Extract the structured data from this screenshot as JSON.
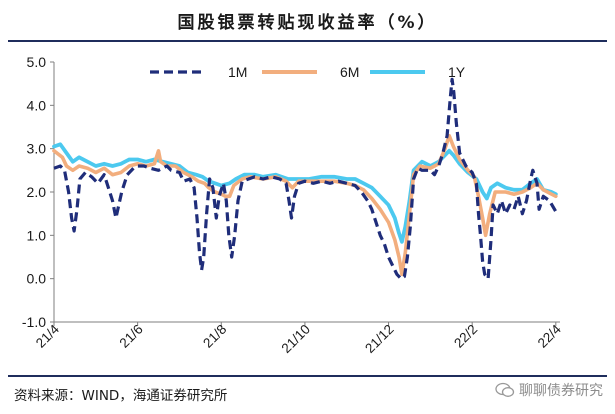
{
  "source": "资料来源：WIND，海通证券研究所",
  "watermark": "聊聊债券研究",
  "chart_data": {
    "type": "line",
    "title": "国股银票转贴现收益率（%）",
    "xlabel": "",
    "ylabel": "",
    "ylim": [
      -1.0,
      5.0
    ],
    "yticks": [
      "-1.0",
      "0.0",
      "1.0",
      "2.0",
      "3.0",
      "4.0",
      "5.0"
    ],
    "xlim": [
      0,
      12.1
    ],
    "xticks": [
      {
        "label": "21/4",
        "x": 0
      },
      {
        "label": "21/6",
        "x": 2
      },
      {
        "label": "21/8",
        "x": 4
      },
      {
        "label": "21/10",
        "x": 6
      },
      {
        "label": "21/12",
        "x": 8
      },
      {
        "label": "22/2",
        "x": 10
      },
      {
        "label": "22/4",
        "x": 12
      }
    ],
    "legend_position": "top",
    "grid": false,
    "series": [
      {
        "name": "1M",
        "color": "#1f2d7a",
        "style": "dashed",
        "points": [
          [
            0.0,
            2.55
          ],
          [
            0.15,
            2.6
          ],
          [
            0.25,
            2.5
          ],
          [
            0.35,
            2.0
          ],
          [
            0.42,
            1.4
          ],
          [
            0.48,
            1.1
          ],
          [
            0.55,
            1.6
          ],
          [
            0.62,
            2.3
          ],
          [
            0.75,
            2.45
          ],
          [
            0.9,
            2.35
          ],
          [
            1.05,
            2.2
          ],
          [
            1.2,
            2.4
          ],
          [
            1.3,
            2.1
          ],
          [
            1.4,
            1.8
          ],
          [
            1.48,
            1.4
          ],
          [
            1.55,
            1.7
          ],
          [
            1.62,
            2.0
          ],
          [
            1.75,
            2.4
          ],
          [
            1.9,
            2.55
          ],
          [
            2.0,
            2.6
          ],
          [
            2.15,
            2.6
          ],
          [
            2.3,
            2.55
          ],
          [
            2.5,
            2.5
          ],
          [
            2.7,
            2.6
          ],
          [
            2.8,
            2.5
          ],
          [
            3.0,
            2.45
          ],
          [
            3.1,
            2.25
          ],
          [
            3.25,
            2.3
          ],
          [
            3.35,
            2.1
          ],
          [
            3.42,
            1.4
          ],
          [
            3.48,
            0.6
          ],
          [
            3.53,
            0.2
          ],
          [
            3.58,
            0.5
          ],
          [
            3.65,
            1.5
          ],
          [
            3.72,
            2.3
          ],
          [
            3.8,
            2.1
          ],
          [
            3.88,
            1.4
          ],
          [
            3.95,
            1.9
          ],
          [
            4.05,
            2.2
          ],
          [
            4.12,
            1.8
          ],
          [
            4.18,
            1.0
          ],
          [
            4.25,
            0.5
          ],
          [
            4.32,
            1.0
          ],
          [
            4.4,
            1.8
          ],
          [
            4.5,
            2.25
          ],
          [
            4.65,
            2.3
          ],
          [
            4.8,
            2.35
          ],
          [
            5.0,
            2.3
          ],
          [
            5.2,
            2.35
          ],
          [
            5.4,
            2.3
          ],
          [
            5.55,
            2.2
          ],
          [
            5.62,
            1.8
          ],
          [
            5.68,
            1.4
          ],
          [
            5.75,
            1.9
          ],
          [
            5.85,
            2.2
          ],
          [
            6.0,
            2.25
          ],
          [
            6.2,
            2.2
          ],
          [
            6.4,
            2.25
          ],
          [
            6.6,
            2.2
          ],
          [
            6.8,
            2.25
          ],
          [
            7.0,
            2.2
          ],
          [
            7.2,
            2.15
          ],
          [
            7.35,
            2.0
          ],
          [
            7.5,
            1.8
          ],
          [
            7.6,
            1.6
          ],
          [
            7.7,
            1.3
          ],
          [
            7.8,
            1.0
          ],
          [
            7.9,
            0.8
          ],
          [
            8.0,
            0.5
          ],
          [
            8.1,
            0.3
          ],
          [
            8.2,
            0.1
          ],
          [
            8.3,
            0.0
          ],
          [
            8.38,
            0.05
          ],
          [
            8.45,
            0.5
          ],
          [
            8.52,
            1.2
          ],
          [
            8.6,
            2.3
          ],
          [
            8.7,
            2.55
          ],
          [
            8.8,
            2.5
          ],
          [
            9.0,
            2.5
          ],
          [
            9.1,
            2.4
          ],
          [
            9.2,
            2.6
          ],
          [
            9.3,
            2.9
          ],
          [
            9.4,
            3.3
          ],
          [
            9.48,
            4.2
          ],
          [
            9.52,
            4.6
          ],
          [
            9.56,
            4.3
          ],
          [
            9.62,
            3.6
          ],
          [
            9.7,
            2.9
          ],
          [
            9.85,
            2.6
          ],
          [
            10.0,
            2.45
          ],
          [
            10.1,
            2.2
          ],
          [
            10.15,
            1.5
          ],
          [
            10.2,
            1.0
          ],
          [
            10.25,
            0.4
          ],
          [
            10.3,
            0.1
          ],
          [
            10.38,
            0.0
          ],
          [
            10.45,
            0.9
          ],
          [
            10.5,
            1.7
          ],
          [
            10.6,
            1.5
          ],
          [
            10.7,
            1.8
          ],
          [
            10.8,
            1.5
          ],
          [
            10.9,
            1.7
          ],
          [
            11.0,
            1.6
          ],
          [
            11.1,
            1.9
          ],
          [
            11.2,
            1.5
          ],
          [
            11.3,
            1.8
          ],
          [
            11.4,
            2.3
          ],
          [
            11.45,
            2.5
          ],
          [
            11.55,
            2.2
          ],
          [
            11.6,
            1.6
          ],
          [
            11.7,
            1.9
          ],
          [
            11.85,
            1.8
          ],
          [
            12.0,
            1.55
          ]
        ]
      },
      {
        "name": "6M",
        "color": "#f2ae7e",
        "style": "solid",
        "points": [
          [
            0.0,
            2.95
          ],
          [
            0.2,
            2.8
          ],
          [
            0.3,
            2.6
          ],
          [
            0.45,
            2.5
          ],
          [
            0.6,
            2.6
          ],
          [
            0.8,
            2.55
          ],
          [
            1.0,
            2.45
          ],
          [
            1.2,
            2.55
          ],
          [
            1.4,
            2.4
          ],
          [
            1.6,
            2.45
          ],
          [
            1.8,
            2.6
          ],
          [
            2.0,
            2.65
          ],
          [
            2.2,
            2.6
          ],
          [
            2.4,
            2.65
          ],
          [
            2.5,
            2.95
          ],
          [
            2.55,
            2.7
          ],
          [
            2.7,
            2.6
          ],
          [
            2.9,
            2.6
          ],
          [
            3.1,
            2.45
          ],
          [
            3.3,
            2.35
          ],
          [
            3.45,
            2.25
          ],
          [
            3.6,
            2.2
          ],
          [
            3.7,
            2.1
          ],
          [
            3.85,
            2.0
          ],
          [
            4.0,
            1.95
          ],
          [
            4.1,
            1.9
          ],
          [
            4.2,
            1.9
          ],
          [
            4.3,
            2.15
          ],
          [
            4.5,
            2.3
          ],
          [
            4.7,
            2.35
          ],
          [
            5.0,
            2.3
          ],
          [
            5.3,
            2.35
          ],
          [
            5.55,
            2.25
          ],
          [
            5.7,
            2.1
          ],
          [
            5.85,
            2.25
          ],
          [
            6.1,
            2.25
          ],
          [
            6.4,
            2.25
          ],
          [
            6.7,
            2.25
          ],
          [
            7.0,
            2.2
          ],
          [
            7.2,
            2.15
          ],
          [
            7.4,
            2.05
          ],
          [
            7.6,
            1.85
          ],
          [
            7.8,
            1.6
          ],
          [
            8.0,
            1.3
          ],
          [
            8.15,
            0.9
          ],
          [
            8.25,
            0.5
          ],
          [
            8.32,
            0.1
          ],
          [
            8.4,
            0.6
          ],
          [
            8.5,
            1.5
          ],
          [
            8.6,
            2.4
          ],
          [
            8.75,
            2.6
          ],
          [
            9.0,
            2.55
          ],
          [
            9.2,
            2.65
          ],
          [
            9.35,
            3.0
          ],
          [
            9.45,
            3.3
          ],
          [
            9.55,
            3.05
          ],
          [
            9.7,
            2.75
          ],
          [
            9.9,
            2.5
          ],
          [
            10.05,
            2.35
          ],
          [
            10.15,
            1.9
          ],
          [
            10.25,
            1.4
          ],
          [
            10.32,
            1.0
          ],
          [
            10.42,
            1.5
          ],
          [
            10.55,
            2.0
          ],
          [
            10.8,
            2.0
          ],
          [
            11.0,
            1.95
          ],
          [
            11.2,
            2.0
          ],
          [
            11.4,
            2.1
          ],
          [
            11.55,
            2.2
          ],
          [
            11.7,
            2.05
          ],
          [
            11.9,
            1.95
          ],
          [
            12.0,
            1.9
          ]
        ]
      },
      {
        "name": "1Y",
        "color": "#4cc9ef",
        "style": "solid",
        "points": [
          [
            0.0,
            3.05
          ],
          [
            0.15,
            3.1
          ],
          [
            0.3,
            2.9
          ],
          [
            0.45,
            2.7
          ],
          [
            0.6,
            2.8
          ],
          [
            0.8,
            2.7
          ],
          [
            1.0,
            2.6
          ],
          [
            1.2,
            2.65
          ],
          [
            1.4,
            2.6
          ],
          [
            1.6,
            2.65
          ],
          [
            1.8,
            2.75
          ],
          [
            2.0,
            2.75
          ],
          [
            2.2,
            2.7
          ],
          [
            2.4,
            2.75
          ],
          [
            2.6,
            2.7
          ],
          [
            2.8,
            2.65
          ],
          [
            3.0,
            2.6
          ],
          [
            3.2,
            2.45
          ],
          [
            3.4,
            2.4
          ],
          [
            3.55,
            2.35
          ],
          [
            3.7,
            2.25
          ],
          [
            3.85,
            2.2
          ],
          [
            4.0,
            2.15
          ],
          [
            4.2,
            2.2
          ],
          [
            4.35,
            2.3
          ],
          [
            4.55,
            2.4
          ],
          [
            4.8,
            2.4
          ],
          [
            5.0,
            2.35
          ],
          [
            5.3,
            2.4
          ],
          [
            5.6,
            2.3
          ],
          [
            5.8,
            2.3
          ],
          [
            6.1,
            2.3
          ],
          [
            6.4,
            2.35
          ],
          [
            6.7,
            2.35
          ],
          [
            7.0,
            2.3
          ],
          [
            7.2,
            2.3
          ],
          [
            7.4,
            2.2
          ],
          [
            7.6,
            2.1
          ],
          [
            7.8,
            1.9
          ],
          [
            8.0,
            1.7
          ],
          [
            8.15,
            1.4
          ],
          [
            8.25,
            1.05
          ],
          [
            8.32,
            0.85
          ],
          [
            8.4,
            1.2
          ],
          [
            8.5,
            1.8
          ],
          [
            8.6,
            2.5
          ],
          [
            8.8,
            2.7
          ],
          [
            9.0,
            2.6
          ],
          [
            9.2,
            2.7
          ],
          [
            9.35,
            2.85
          ],
          [
            9.45,
            2.95
          ],
          [
            9.55,
            2.85
          ],
          [
            9.7,
            2.65
          ],
          [
            9.9,
            2.45
          ],
          [
            10.1,
            2.3
          ],
          [
            10.25,
            2.0
          ],
          [
            10.35,
            1.85
          ],
          [
            10.45,
            2.1
          ],
          [
            10.6,
            2.2
          ],
          [
            10.8,
            2.1
          ],
          [
            11.0,
            2.05
          ],
          [
            11.2,
            2.05
          ],
          [
            11.4,
            2.2
          ],
          [
            11.55,
            2.3
          ],
          [
            11.7,
            2.05
          ],
          [
            11.9,
            2.0
          ],
          [
            12.0,
            1.95
          ]
        ]
      }
    ]
  }
}
